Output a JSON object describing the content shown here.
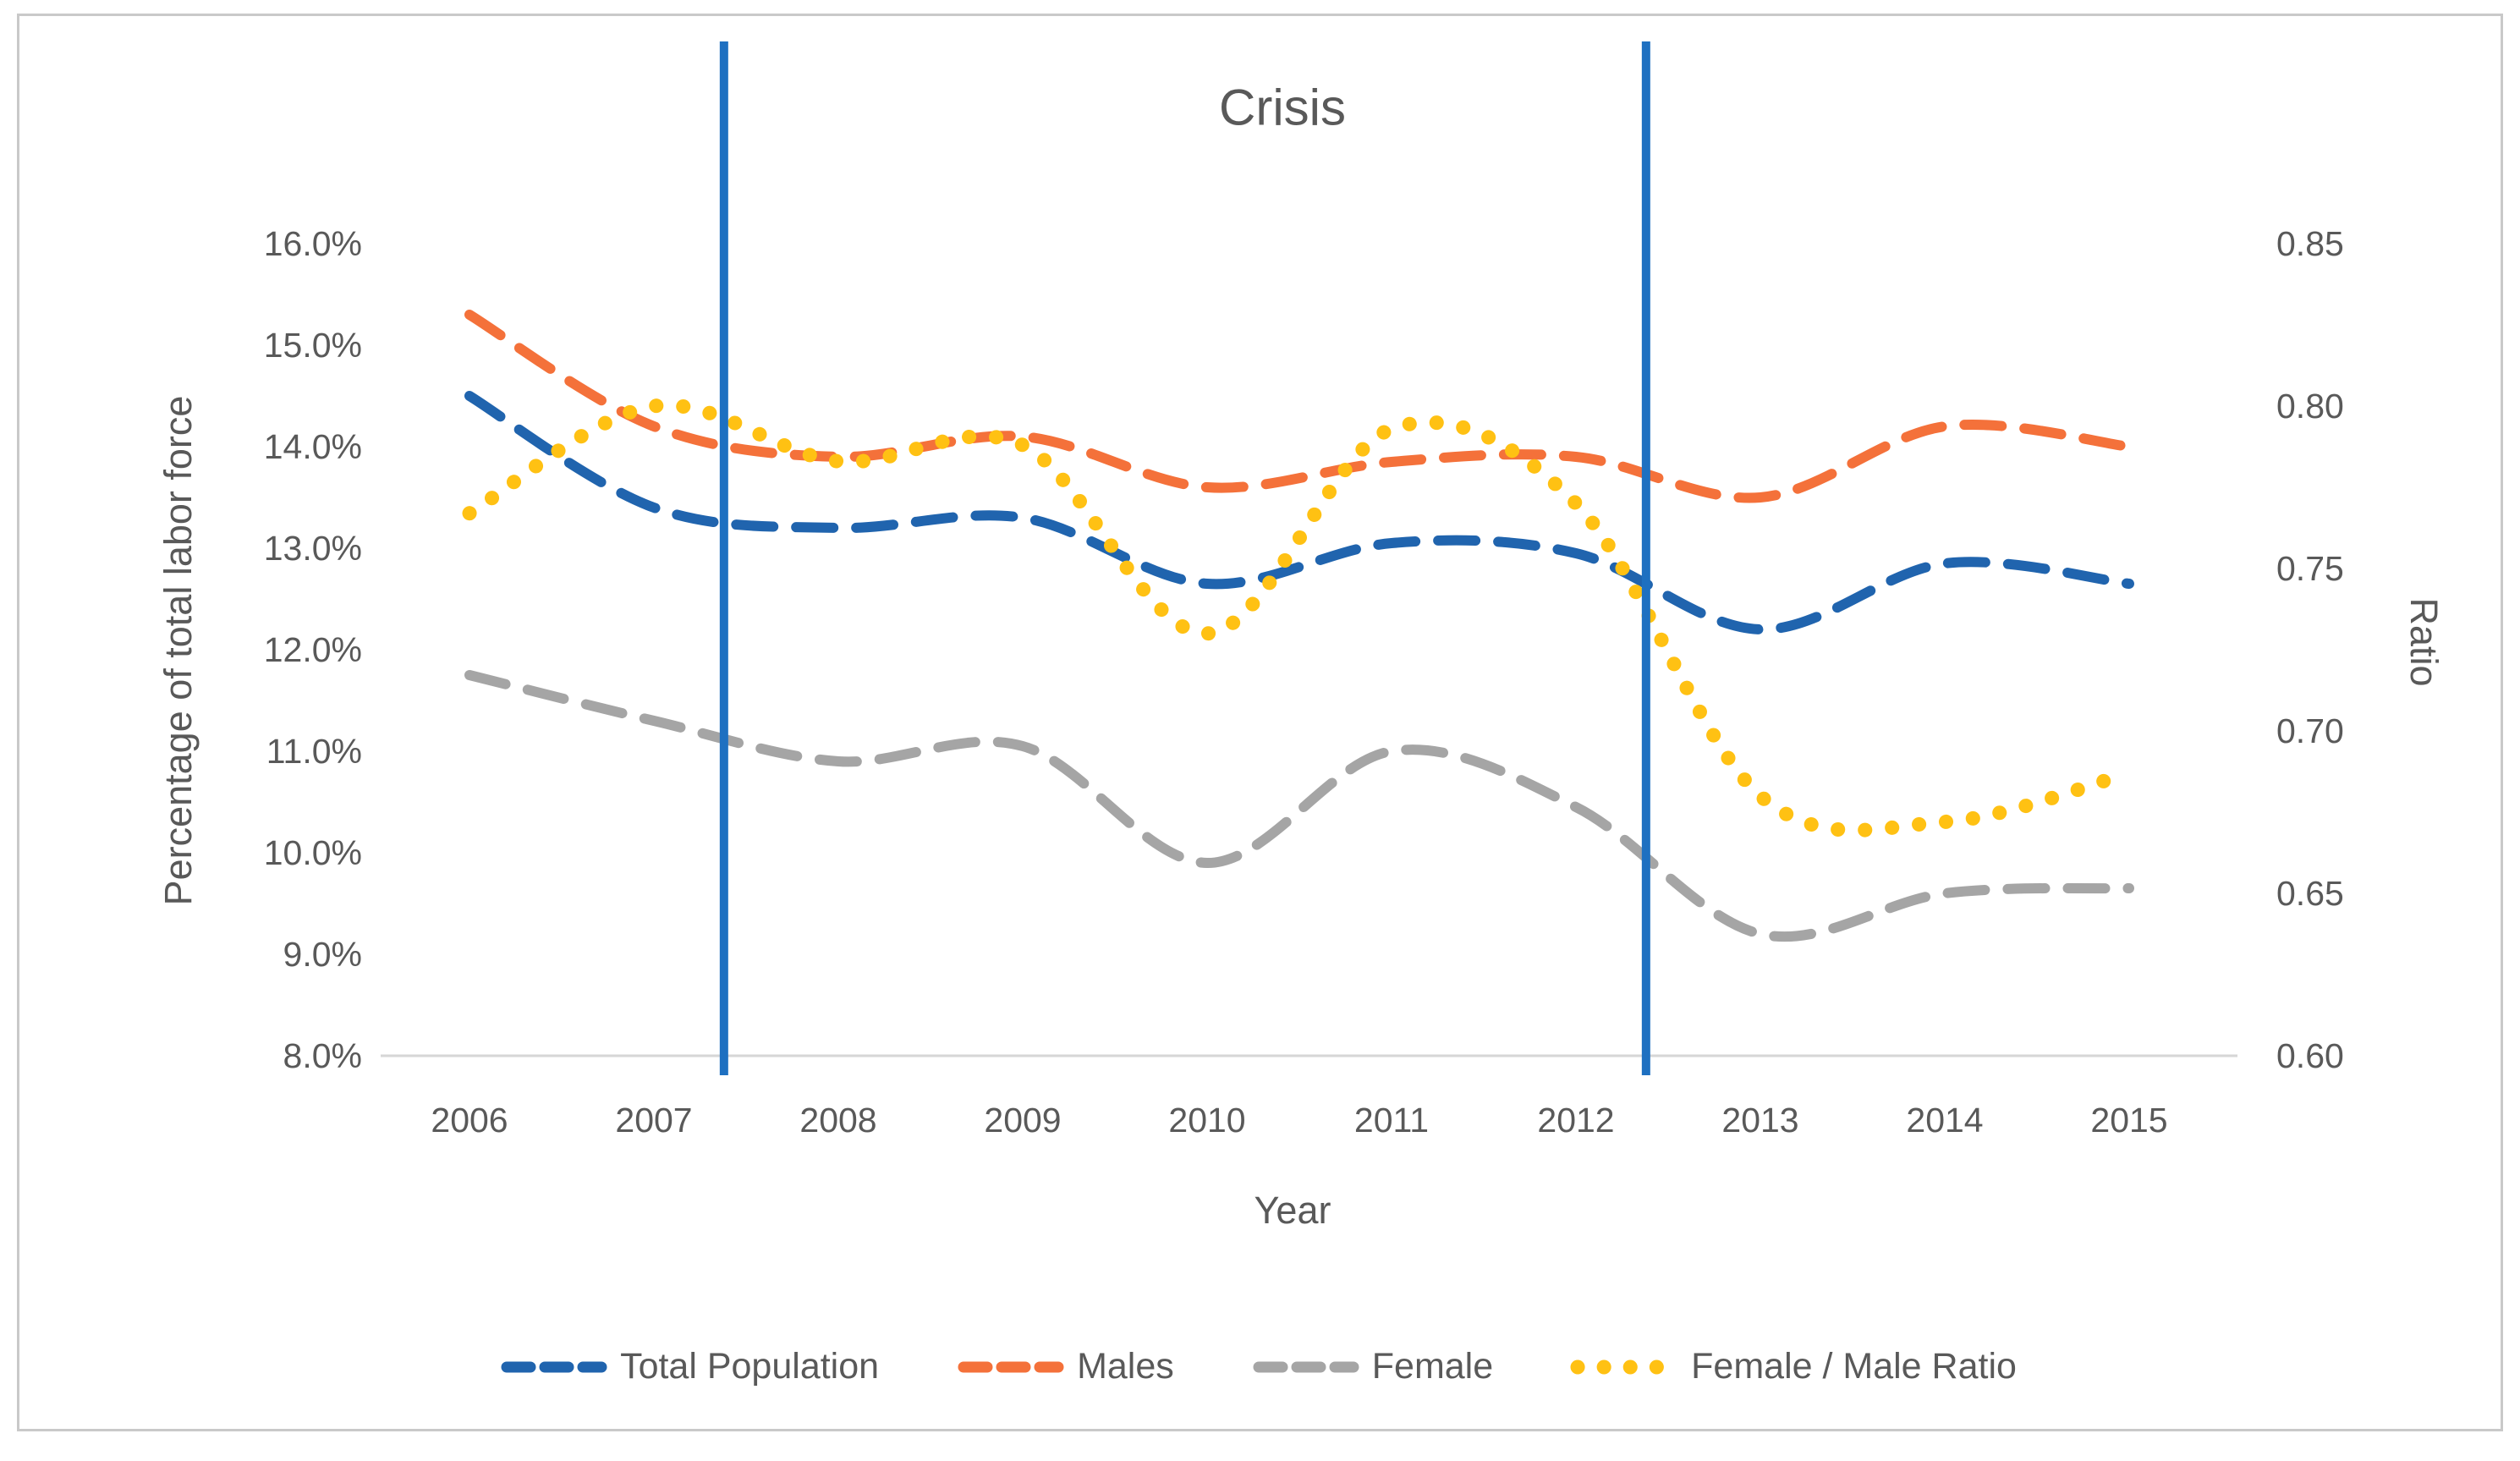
{
  "window": {
    "background": "#ffffff",
    "frame_border_color": "#c9c9c9"
  },
  "chart": {
    "title": "Crisis",
    "x_axis": {
      "title": "Year",
      "tick_labels": [
        "2006",
        "2007",
        "2008",
        "2009",
        "2010",
        "2011",
        "2012",
        "2013",
        "2014",
        "2015"
      ]
    },
    "y_axis_left": {
      "title": "Percentage of total labor force",
      "tick_labels": [
        "16.0%",
        "15.0%",
        "14.0%",
        "13.0%",
        "12.0%",
        "11.0%",
        "10.0%",
        "9.0%",
        "8.0%"
      ]
    },
    "y_axis_right": {
      "title": "Ratio",
      "tick_labels": [
        "0.85",
        "0.80",
        "0.75",
        "0.70",
        "0.65",
        "0.60"
      ]
    },
    "colors": {
      "total_population": "#2064ae",
      "males": "#f4713a",
      "female": "#a5a5a5",
      "ratio": "#ffc113",
      "vertical_line": "#1e70c1",
      "axis_line": "#d6d6d6",
      "text": "#595959"
    }
  },
  "chart_data": {
    "type": "line",
    "title": "Crisis",
    "x": [
      2006,
      2007,
      2008,
      2009,
      2010,
      2011,
      2012,
      2013,
      2014,
      2015
    ],
    "xlabel": "Year",
    "ylabel_left": "Percentage of total labor force",
    "ylabel_right": "Ratio",
    "left_ylim": [
      8.0,
      16.0
    ],
    "right_ylim": [
      0.6,
      0.85
    ],
    "left_tick_step": 1.0,
    "right_tick_step": 0.05,
    "grid": false,
    "legend_position": "bottom",
    "series": [
      {
        "name": "Total Population",
        "axis": "left",
        "style": "dashed",
        "color": "#2064ae",
        "values": [
          14.5,
          13.4,
          13.2,
          13.3,
          12.65,
          13.05,
          12.95,
          12.2,
          12.85,
          12.65
        ]
      },
      {
        "name": "Males",
        "axis": "left",
        "style": "dashed",
        "color": "#f4713a",
        "values": [
          15.3,
          14.2,
          13.9,
          14.1,
          13.6,
          13.85,
          13.9,
          13.5,
          14.2,
          14.0
        ]
      },
      {
        "name": "Female",
        "axis": "left",
        "style": "dashed",
        "color": "#a5a5a5",
        "values": [
          11.75,
          11.3,
          10.9,
          11.05,
          9.9,
          11.0,
          10.45,
          9.2,
          9.6,
          9.65
        ]
      },
      {
        "name": "Female / Male Ratio",
        "axis": "right",
        "style": "dotted",
        "color": "#ffc113",
        "values": [
          0.767,
          0.8,
          0.783,
          0.788,
          0.73,
          0.793,
          0.77,
          0.68,
          0.672,
          0.687
        ]
      }
    ],
    "annotations": {
      "vertical_lines": [
        {
          "x": 2007.38,
          "color": "#1e70c1",
          "meaning": "crisis start"
        },
        {
          "x": 2012.38,
          "color": "#1e70c1",
          "meaning": "crisis end"
        }
      ],
      "label": "Crisis"
    }
  },
  "legend": {
    "items": [
      {
        "label": "Total Population",
        "series_index": 0
      },
      {
        "label": "Males",
        "series_index": 1
      },
      {
        "label": "Female",
        "series_index": 2
      },
      {
        "label": "Female / Male Ratio",
        "series_index": 3
      }
    ]
  }
}
